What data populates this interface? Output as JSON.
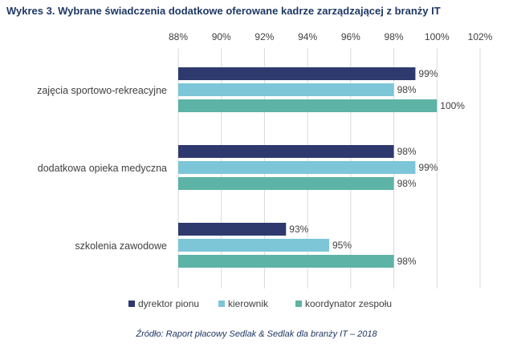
{
  "title": "Wykres 3. Wybrane świadczenia dodatkowe oferowane kadrze zarządzającej z branży IT",
  "source": "Źródło: Raport płacowy Sedlak & Sedlak dla branży IT – 2018",
  "chart_data": {
    "type": "bar",
    "orientation": "horizontal",
    "categories": [
      "zajęcia sportowo-rekreacyjne",
      "dodatkowa opieka medyczna",
      "szkolenia zawodowe"
    ],
    "series": [
      {
        "name": "dyrektor pionu",
        "color": "#2e3a6e",
        "values": [
          99,
          98,
          93
        ],
        "labels": [
          "99%",
          "98%",
          "93%"
        ]
      },
      {
        "name": "kierownik",
        "color": "#7cc6d8",
        "values": [
          98,
          99,
          95
        ],
        "labels": [
          "98%",
          "99%",
          "95%"
        ]
      },
      {
        "name": "koordynator zespołu",
        "color": "#5db3a6",
        "values": [
          100,
          98,
          98
        ],
        "labels": [
          "100%",
          "98%",
          "98%"
        ]
      }
    ],
    "xlim": [
      88,
      102
    ],
    "ticks": [
      88,
      90,
      92,
      94,
      96,
      98,
      100,
      102
    ],
    "tick_labels": [
      "88%",
      "90%",
      "92%",
      "94%",
      "96%",
      "98%",
      "100%",
      "102%"
    ],
    "grid": true,
    "legend": "bottom"
  }
}
